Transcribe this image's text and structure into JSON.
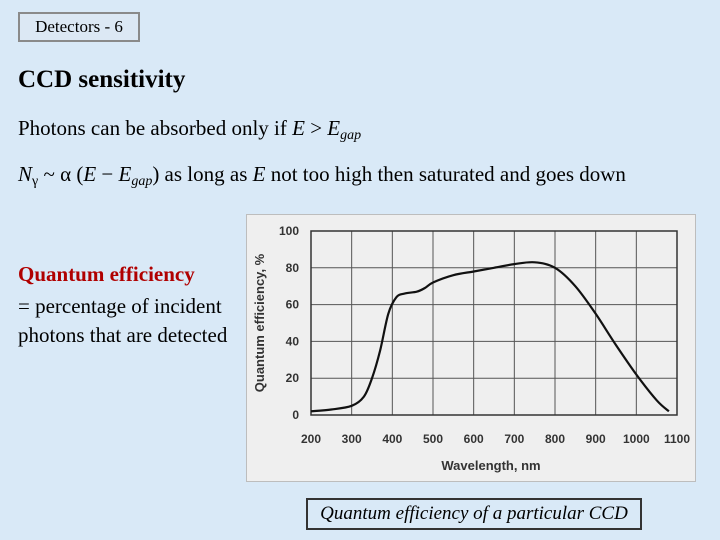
{
  "slide_tag": "Detectors - 6",
  "title": "CCD sensitivity",
  "line1": {
    "prefix": "Photons can be absorbed only if ",
    "E": "E",
    "op": " > ",
    "Egap_E": "E",
    "Egap_sub": "gap"
  },
  "line2": {
    "N": "N",
    "N_sub": "γ",
    "mid1": " ~ α (",
    "E": "E",
    "minus": " − ",
    "Egap_E": "E",
    "Egap_sub": "gap",
    "mid2": ") as long as ",
    "E2": "E",
    "rest": " not too high then saturated and goes down"
  },
  "qe_heading": "Quantum efficiency",
  "qe_definition": "= percentage of incident photons that are detected",
  "caption": "Quantum efficiency of a particular CCD",
  "chart_data": {
    "type": "line",
    "xlabel": "Wavelength, nm",
    "ylabel": "Quantum efficiency, %",
    "xlim": [
      200,
      1100
    ],
    "ylim": [
      0,
      100
    ],
    "x_ticks": [
      200,
      300,
      400,
      500,
      600,
      700,
      800,
      900,
      1000,
      1100
    ],
    "y_ticks": [
      0,
      20,
      40,
      60,
      80,
      100
    ],
    "grid": true,
    "series": [
      {
        "x": [
          200,
          250,
          300,
          330,
          350,
          370,
          390,
          410,
          430,
          460,
          480,
          500,
          550,
          600,
          650,
          700,
          750,
          800,
          850,
          900,
          950,
          1000,
          1050,
          1080
        ],
        "y": [
          2,
          3,
          5,
          10,
          20,
          35,
          55,
          64,
          66,
          67,
          69,
          72,
          76,
          78,
          80,
          82,
          83,
          80,
          70,
          55,
          38,
          22,
          8,
          2
        ]
      }
    ]
  }
}
